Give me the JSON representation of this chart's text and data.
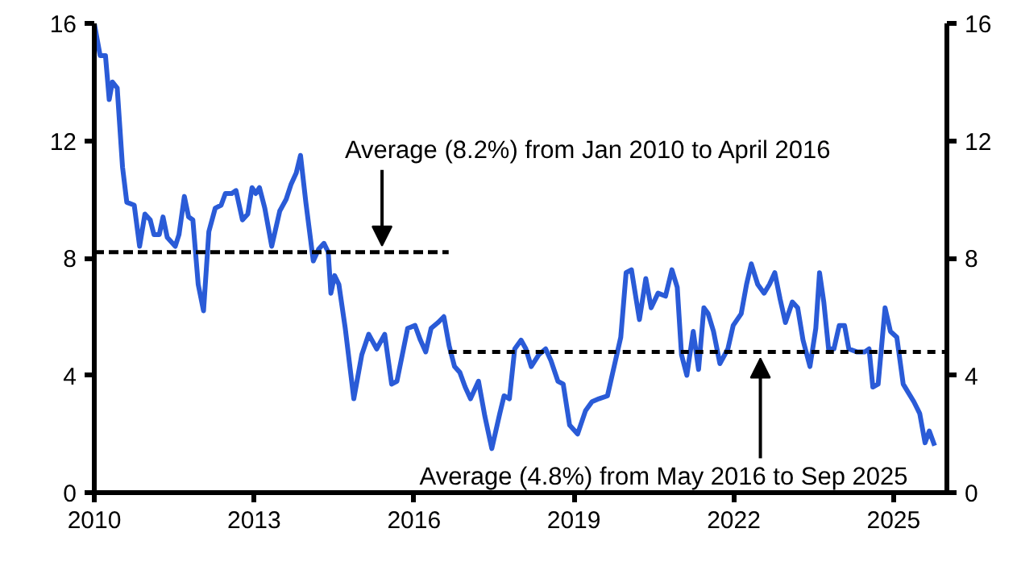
{
  "chart_data": {
    "type": "line",
    "x": [
      2010.0,
      2010.11,
      2010.21,
      2010.28,
      2010.34,
      2010.43,
      2010.53,
      2010.61,
      2010.75,
      2010.85,
      2010.95,
      2011.05,
      2011.12,
      2011.22,
      2011.29,
      2011.37,
      2011.52,
      2011.59,
      2011.69,
      2011.77,
      2011.85,
      2011.95,
      2012.05,
      2012.15,
      2012.27,
      2012.38,
      2012.46,
      2012.58,
      2012.66,
      2012.78,
      2012.88,
      2012.96,
      2013.03,
      2013.1,
      2013.2,
      2013.33,
      2013.48,
      2013.6,
      2013.69,
      2013.79,
      2013.87,
      2013.97,
      2014.11,
      2014.21,
      2014.31,
      2014.39,
      2014.44,
      2014.51,
      2014.59,
      2014.71,
      2014.87,
      2015.02,
      2015.15,
      2015.3,
      2015.45,
      2015.58,
      2015.68,
      2015.88,
      2016.02,
      2016.12,
      2016.22,
      2016.32,
      2016.45,
      2016.56,
      2016.66,
      2016.76,
      2016.86,
      2016.96,
      2017.06,
      2017.21,
      2017.33,
      2017.46,
      2017.61,
      2017.69,
      2017.79,
      2017.89,
      2018.01,
      2018.1,
      2018.2,
      2018.34,
      2018.47,
      2018.57,
      2018.7,
      2018.8,
      2018.92,
      2019.07,
      2019.22,
      2019.34,
      2019.47,
      2019.63,
      2019.78,
      2019.88,
      2019.98,
      2020.08,
      2020.23,
      2020.35,
      2020.45,
      2020.58,
      2020.72,
      2020.84,
      2020.94,
      2021.02,
      2021.12,
      2021.24,
      2021.34,
      2021.44,
      2021.52,
      2021.62,
      2021.74,
      2021.89,
      2021.99,
      2022.14,
      2022.24,
      2022.33,
      2022.45,
      2022.57,
      2022.67,
      2022.77,
      2022.87,
      2022.97,
      2023.1,
      2023.2,
      2023.3,
      2023.43,
      2023.54,
      2023.61,
      2023.69,
      2023.78,
      2023.88,
      2023.98,
      2024.08,
      2024.16,
      2024.31,
      2024.46,
      2024.54,
      2024.61,
      2024.71,
      2024.84,
      2024.94,
      2025.06,
      2025.18,
      2025.28,
      2025.38,
      2025.49,
      2025.59,
      2025.67,
      2025.77
    ],
    "series": [
      {
        "color": "#2a5bd7",
        "values": [
          16.0,
          14.9,
          14.9,
          13.4,
          14.0,
          13.8,
          11.1,
          9.9,
          9.8,
          8.4,
          9.5,
          9.3,
          8.8,
          8.8,
          9.4,
          8.7,
          8.4,
          8.8,
          10.1,
          9.4,
          9.3,
          7.1,
          6.2,
          8.9,
          9.7,
          9.8,
          10.2,
          10.2,
          10.3,
          9.3,
          9.5,
          10.4,
          10.2,
          10.4,
          9.7,
          8.4,
          9.6,
          10.0,
          10.5,
          10.9,
          11.5,
          9.9,
          7.9,
          8.3,
          8.5,
          8.2,
          6.8,
          7.4,
          7.1,
          5.6,
          3.2,
          4.7,
          5.4,
          4.9,
          5.4,
          3.7,
          3.8,
          5.6,
          5.7,
          5.2,
          4.8,
          5.6,
          5.8,
          6.0,
          5.0,
          4.3,
          4.1,
          3.6,
          3.2,
          3.8,
          2.6,
          1.5,
          2.7,
          3.3,
          3.2,
          4.9,
          5.2,
          4.9,
          4.3,
          4.7,
          4.9,
          4.5,
          3.8,
          3.7,
          2.3,
          2.0,
          2.8,
          3.1,
          3.2,
          3.3,
          4.5,
          5.3,
          7.5,
          7.6,
          5.9,
          7.3,
          6.3,
          6.8,
          6.7,
          7.6,
          7.0,
          4.7,
          4.0,
          5.5,
          4.2,
          6.3,
          6.1,
          5.5,
          4.4,
          4.9,
          5.7,
          6.1,
          7.1,
          7.8,
          7.1,
          6.8,
          7.1,
          7.5,
          6.6,
          5.8,
          6.5,
          6.3,
          5.2,
          4.3,
          5.6,
          7.5,
          6.5,
          4.9,
          4.9,
          5.7,
          5.7,
          4.9,
          4.8,
          4.8,
          4.9,
          3.6,
          3.7,
          6.3,
          5.5,
          5.3,
          3.7,
          3.4,
          3.1,
          2.7,
          1.7,
          2.1,
          1.6
        ]
      },
      {
        "color": "#000000",
        "line_style": "dashed",
        "x": [
          2010.0,
          2016.65
        ],
        "values": [
          8.2,
          8.2
        ]
      },
      {
        "color": "#000000",
        "line_style": "dashed",
        "x": [
          2016.65,
          2026.0
        ],
        "values": [
          4.8,
          4.8
        ]
      }
    ],
    "annotations": [
      {
        "text": "Average (8.2%) from Jan 2010 to April 2016",
        "x": 2015.4,
        "y": 8.2
      },
      {
        "text": "Average (4.8%) from May 2016 to Sep 2025",
        "x": 2022.5,
        "y": 4.8
      }
    ],
    "xlim": [
      2010,
      2026
    ],
    "xticks": [
      2010,
      2013,
      2016,
      2019,
      2022,
      2025
    ],
    "ylim": [
      0,
      16
    ],
    "yticks": [
      0,
      4,
      8,
      12,
      16
    ],
    "y2lim": [
      0,
      16
    ],
    "y2ticks": [
      0,
      4,
      8,
      12,
      16
    ],
    "line_style": "solid"
  }
}
